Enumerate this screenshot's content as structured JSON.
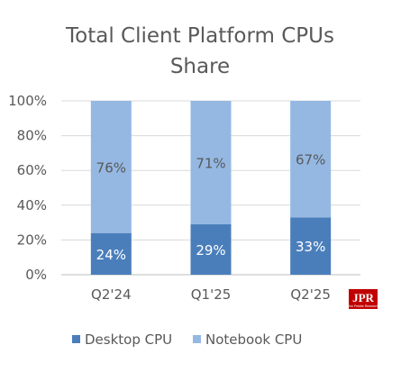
{
  "chart_data": {
    "type": "bar",
    "stacked": true,
    "percent": true,
    "title_lines": [
      "Total Client Platform CPUs",
      "Share"
    ],
    "categories": [
      "Q2'24",
      "Q1'25",
      "Q2'25"
    ],
    "series": [
      {
        "name": "Desktop CPU",
        "values": [
          24,
          29,
          33
        ],
        "labels": [
          "24%",
          "29%",
          "33%"
        ],
        "color": "#4A7EBB"
      },
      {
        "name": "Notebook CPU",
        "values": [
          76,
          71,
          67
        ],
        "labels": [
          "76%",
          "71%",
          "67%"
        ],
        "color": "#95B8E3"
      }
    ],
    "ylim": [
      0,
      100
    ],
    "yticks": [
      "0%",
      "20%",
      "40%",
      "60%",
      "80%",
      "100%"
    ],
    "grid": true,
    "legend_position": "bottom",
    "label_colors": {
      "Desktop CPU": "#ffffff",
      "Notebook CPU": "#595959"
    }
  },
  "logo": {
    "text": "JPR",
    "subtext": "Jon Peddie Research",
    "color": "#C00000"
  }
}
